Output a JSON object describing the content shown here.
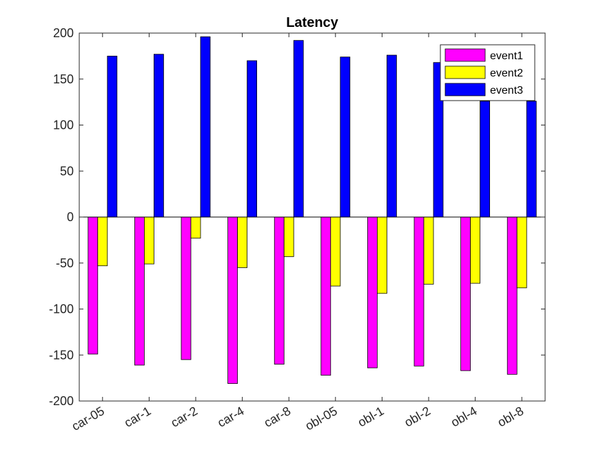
{
  "chart_data": {
    "type": "bar",
    "title": "Latency",
    "xlabel": "",
    "ylabel": "",
    "categories": [
      "car-05",
      "car-1",
      "car-2",
      "car-4",
      "car-8",
      "obl-05",
      "obl-1",
      "obl-2",
      "obl-4",
      "obl-8"
    ],
    "series": [
      {
        "name": "event1",
        "color": "#ff00ff",
        "values": [
          -149,
          -161,
          -155,
          -181,
          -160,
          -172,
          -164,
          -162,
          -167,
          -171
        ]
      },
      {
        "name": "event2",
        "color": "#ffff00",
        "values": [
          -53,
          -51,
          -23,
          -55,
          -43,
          -75,
          -83,
          -73,
          -72,
          -77
        ]
      },
      {
        "name": "event3",
        "color": "#0000ff",
        "values": [
          175,
          177,
          196,
          170,
          192,
          174,
          176,
          168,
          126,
          126
        ]
      }
    ],
    "ylim": [
      -200,
      200
    ],
    "yticks": [
      -200,
      -150,
      -100,
      -50,
      0,
      50,
      100,
      150,
      200
    ],
    "grid": false,
    "legend_position": "top-right"
  }
}
